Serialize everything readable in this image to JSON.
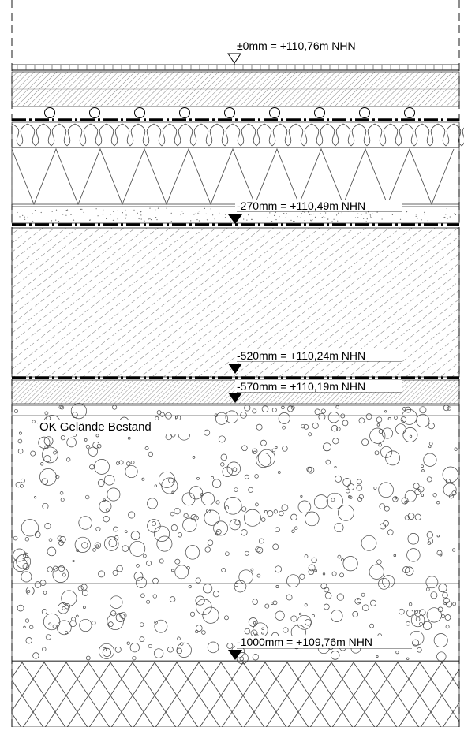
{
  "levels": {
    "top": "±0mm = +110,76m NHN",
    "l270": "-270mm = +110,49m NHN",
    "l520": "-520mm = +110,24m NHN",
    "l570": "-570mm = +110,19m NHN",
    "l1000": "-1000mm = +109,76m NHN"
  },
  "ground_label": "OK Gelände Bestand",
  "colors": {
    "line": "#000000",
    "hatch": "#555555",
    "background": "#ffffff"
  }
}
